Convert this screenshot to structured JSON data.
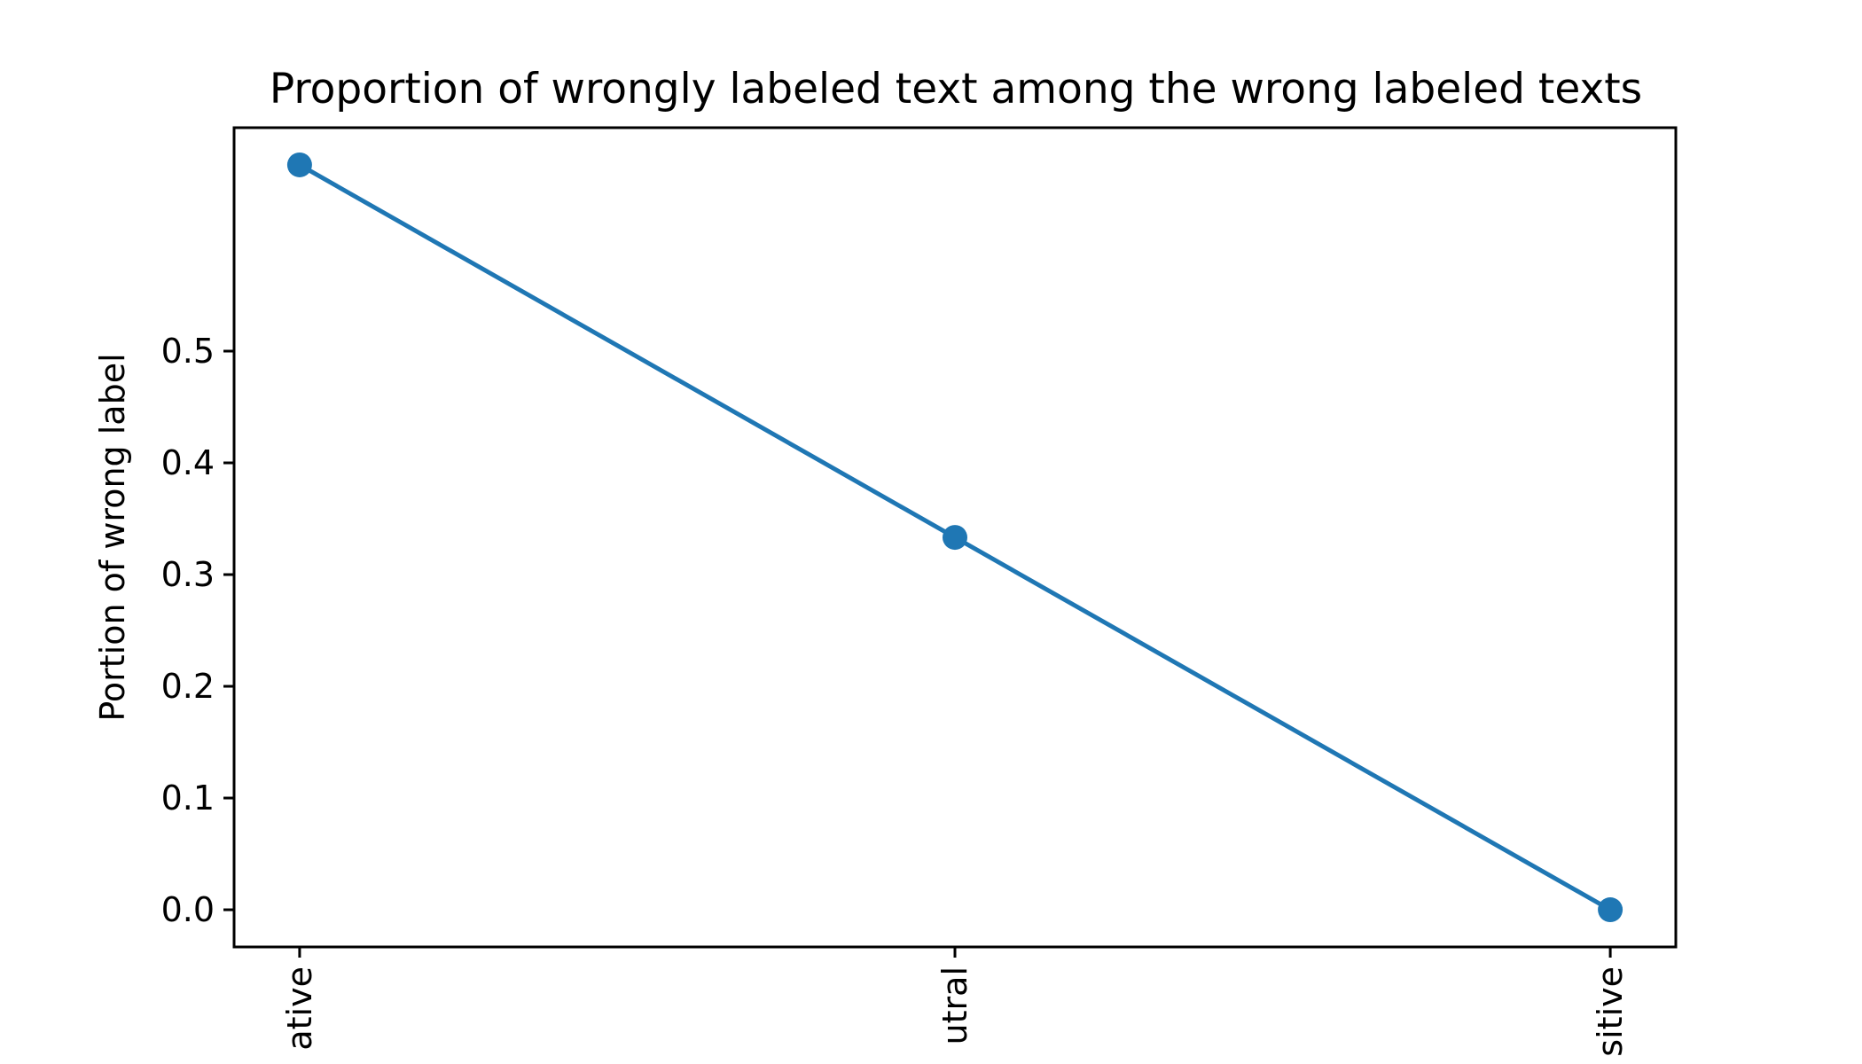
{
  "chart_data": {
    "type": "line",
    "title": "Proportion of wrongly labeled text among the wrong labeled texts",
    "xlabel": "",
    "ylabel": "Portion of wrong label",
    "categories": [
      "negative",
      "neutral",
      "positive"
    ],
    "category_tick_labels_visible": [
      "ative",
      "utral",
      "sitive"
    ],
    "series": [
      {
        "values": [
          0.6667,
          0.3333,
          0.0
        ],
        "color": "#1f77b4",
        "marker": "circle"
      }
    ],
    "yticks": [
      "0.0",
      "0.1",
      "0.2",
      "0.3",
      "0.4",
      "0.5"
    ],
    "ytick_values": [
      0.0,
      0.1,
      0.2,
      0.3,
      0.4,
      0.5
    ],
    "ylim": [
      -0.0333,
      0.7
    ],
    "grid": false,
    "legend": "none",
    "x_tick_label_rotation": "vertical"
  }
}
